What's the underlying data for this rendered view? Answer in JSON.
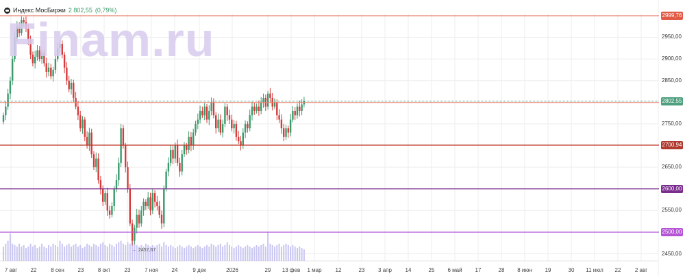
{
  "header": {
    "instrument": "Индекс МосБиржи",
    "price": "2 802,55",
    "change": "(0,79%)",
    "logo_icon": "moex-logo-icon"
  },
  "watermark": "Finam.ru",
  "colors": {
    "up": "#3a9a6a",
    "down": "#d63a3a",
    "volume": "#c9c6f2",
    "grid": "#eeeeee"
  },
  "levels": [
    {
      "value": 2999.76,
      "label": "2999,76",
      "color": "#e8806f",
      "label_bg": "#e05a45",
      "style": "solid"
    },
    {
      "value": 2802.55,
      "label": "2802,55",
      "color": "#4f9e7e",
      "label_bg": "#4f9e7e",
      "style": "dotted"
    },
    {
      "value": 2700.94,
      "label": "2700,94",
      "color": "#c0392b",
      "label_bg": "#b03a2e",
      "style": "solid"
    },
    {
      "value": 2600.0,
      "label": "2600,00",
      "color": "#7b2d8e",
      "label_bg": "#7b2d8e",
      "style": "solid"
    },
    {
      "value": 2500.0,
      "label": "2500,00",
      "color": "#b455d6",
      "label_bg": "#b455d6",
      "style": "solid"
    }
  ],
  "low_annotation": "← 2457,67",
  "chart_data": {
    "type": "candlestick",
    "ylim": [
      2440,
      3010
    ],
    "y_ticks": [
      {
        "v": 2950,
        "l": "2950,00"
      },
      {
        "v": 2900,
        "l": "2900,00"
      },
      {
        "v": 2850,
        "l": "2850,00"
      },
      {
        "v": 2750,
        "l": "2750,00"
      },
      {
        "v": 2650,
        "l": "2650,00"
      },
      {
        "v": 2550,
        "l": "2550,00"
      },
      {
        "v": 2450,
        "l": "2450,00"
      }
    ],
    "x_ticks": [
      "7 авг",
      "22",
      "8 сен",
      "23",
      "8 окт",
      "23",
      "7 ноя",
      "24",
      "9 дек",
      "2026",
      "29",
      "13 фев",
      "1 мар",
      "12",
      "23",
      "3 апр",
      "14",
      "25",
      "6 май",
      "17",
      "28",
      "8 июн",
      "19",
      "30",
      "11 июл",
      "22",
      "2 авг"
    ],
    "closes": [
      2770,
      2790,
      2820,
      2850,
      2900,
      2950,
      2975,
      2960,
      2990,
      2985,
      2970,
      2945,
      2910,
      2890,
      2905,
      2920,
      2900,
      2915,
      2890,
      2870,
      2880,
      2860,
      2875,
      2900,
      2925,
      2935,
      2910,
      2880,
      2850,
      2830,
      2845,
      2810,
      2790,
      2770,
      2740,
      2760,
      2720,
      2700,
      2730,
      2680,
      2650,
      2670,
      2620,
      2600,
      2570,
      2590,
      2550,
      2540,
      2560,
      2600,
      2620,
      2660,
      2740,
      2700,
      2650,
      2600,
      2520,
      2480,
      2510,
      2540,
      2520,
      2550,
      2570,
      2560,
      2580,
      2550,
      2590,
      2570,
      2560,
      2540,
      2520,
      2600,
      2640,
      2660,
      2690,
      2670,
      2700,
      2660,
      2640,
      2680,
      2700,
      2690,
      2720,
      2700,
      2730,
      2750,
      2760,
      2780,
      2770,
      2790,
      2760,
      2780,
      2800,
      2770,
      2740,
      2760,
      2730,
      2750,
      2790,
      2770,
      2760,
      2740,
      2750,
      2720,
      2710,
      2700,
      2730,
      2750,
      2740,
      2770,
      2790,
      2780,
      2790,
      2780,
      2800,
      2810,
      2790,
      2820,
      2810,
      2790,
      2800,
      2770,
      2760,
      2740,
      2720,
      2740,
      2730,
      2760,
      2780,
      2770,
      2790,
      2780,
      2795,
      2802.55
    ],
    "volume_relative": [
      0.5,
      0.6,
      0.7,
      0.95,
      0.6,
      0.55,
      0.5,
      0.6,
      0.5,
      0.55,
      0.45,
      0.5,
      0.6,
      0.5,
      0.55,
      0.45,
      0.5,
      0.6,
      0.5,
      0.45,
      0.55,
      0.5,
      0.6,
      0.55,
      0.5,
      0.7,
      0.6,
      0.5,
      0.55,
      0.6,
      0.5,
      0.55,
      0.6,
      0.5,
      0.55,
      0.45,
      0.5,
      0.6,
      0.55,
      0.5,
      0.6,
      0.55,
      0.5,
      0.6,
      0.65,
      0.55,
      0.5,
      0.6,
      0.55,
      0.5,
      0.6,
      0.65,
      0.7,
      0.6,
      0.55,
      0.65,
      0.6,
      0.75,
      0.6,
      0.55,
      0.5,
      0.55,
      0.5,
      0.6,
      0.55,
      0.5,
      0.55,
      0.5,
      0.55,
      0.6,
      0.5,
      0.65,
      0.55,
      0.5,
      0.55,
      0.5,
      0.45,
      0.5,
      0.55,
      0.5,
      0.45,
      0.5,
      0.55,
      0.5,
      0.45,
      0.5,
      0.55,
      0.5,
      0.45,
      0.5,
      0.55,
      0.5,
      0.6,
      0.55,
      0.5,
      0.55,
      0.6,
      0.5,
      0.55,
      0.65,
      0.55,
      0.5,
      0.45,
      0.5,
      0.55,
      0.5,
      0.45,
      0.5,
      0.55,
      0.5,
      0.45,
      0.5,
      0.55,
      0.5,
      0.55,
      0.6,
      0.5,
      1.0,
      0.6,
      0.55,
      0.5,
      0.55,
      0.6,
      0.5,
      0.55,
      0.6,
      0.55,
      0.5,
      0.55,
      0.5,
      0.45,
      0.5,
      0.45,
      0.4
    ]
  }
}
